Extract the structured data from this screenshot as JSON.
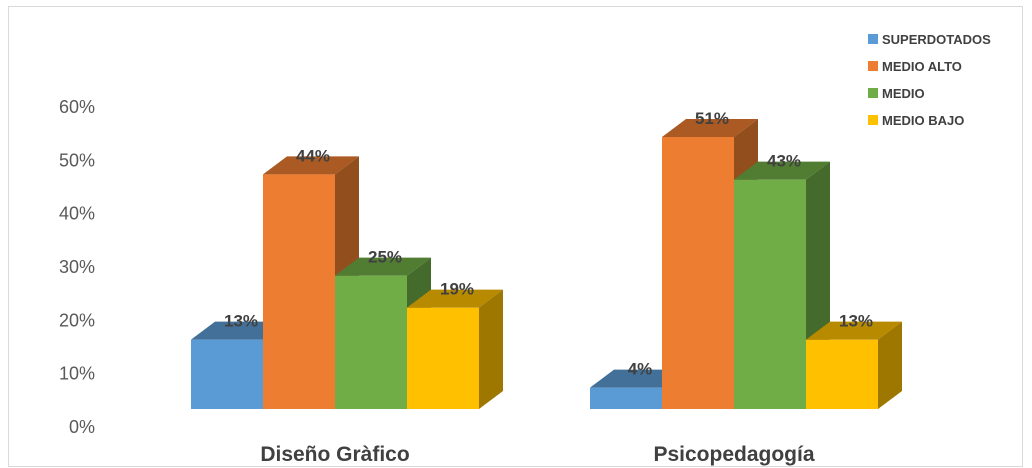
{
  "chart_data": {
    "type": "bar",
    "title": "",
    "xlabel": "",
    "ylabel": "",
    "categories": [
      "Diseño Gràfico",
      "Psicopedagogía"
    ],
    "ylim": [
      0,
      60
    ],
    "yticks": [
      "0%",
      "10%",
      "20%",
      "30%",
      "40%",
      "50%",
      "60%"
    ],
    "grid": false,
    "legend": "top-right",
    "series": [
      {
        "name": "SUPERDOTADOS",
        "values": [
          13,
          4
        ],
        "labels": [
          "13%",
          "4%"
        ],
        "color": "#5b9bd5"
      },
      {
        "name": "MEDIO ALTO",
        "values": [
          44,
          51
        ],
        "labels": [
          "44%",
          "51%"
        ],
        "color": "#ed7d31"
      },
      {
        "name": "MEDIO",
        "values": [
          25,
          43
        ],
        "labels": [
          "25%",
          "43%"
        ],
        "color": "#70ad47"
      },
      {
        "name": "MEDIO BAJO",
        "values": [
          19,
          13
        ],
        "labels": [
          "19%",
          "13%"
        ],
        "color": "#ffc000"
      }
    ]
  }
}
